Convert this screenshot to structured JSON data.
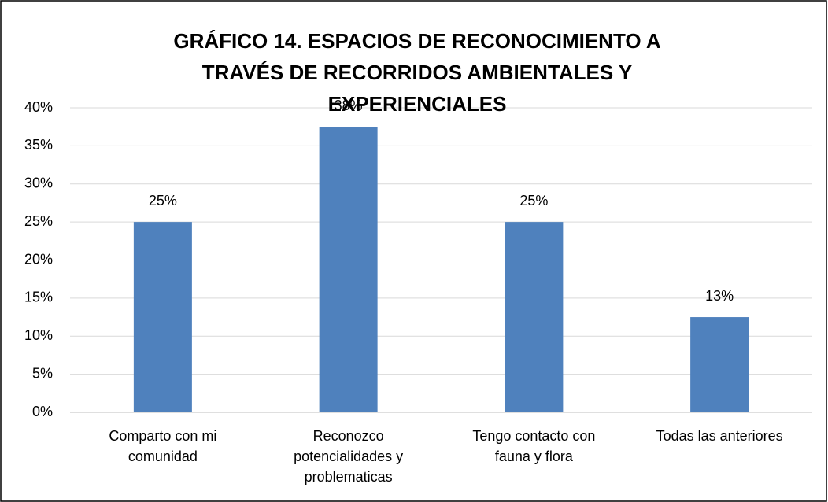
{
  "chart_data": {
    "type": "bar",
    "title": "GRÁFICO 14. ESPACIOS DE RECONOCIMIENTO A TRAVÉS DE RECORRIDOS AMBIENTALES Y EXPERIENCIALES",
    "categories": [
      "Comparto con mi comunidad",
      "Reconozco potencialidades y problematicas",
      "Tengo contacto con fauna y flora",
      "Todas las anteriores"
    ],
    "values": [
      25,
      37.5,
      25,
      12.5
    ],
    "value_labels": [
      "25%",
      "38%",
      "25%",
      "13%"
    ],
    "color": "#4f81bd",
    "ylim": [
      0,
      40
    ],
    "yticks": [
      {
        "value": 0,
        "label": "0%"
      },
      {
        "value": 5,
        "label": "5%"
      },
      {
        "value": 10,
        "label": "10%"
      },
      {
        "value": 15,
        "label": "15%"
      },
      {
        "value": 20,
        "label": "20%"
      },
      {
        "value": 25,
        "label": "25%"
      },
      {
        "value": 30,
        "label": "30%"
      },
      {
        "value": 35,
        "label": "35%"
      },
      {
        "value": 40,
        "label": "40%"
      }
    ],
    "grid": true
  }
}
